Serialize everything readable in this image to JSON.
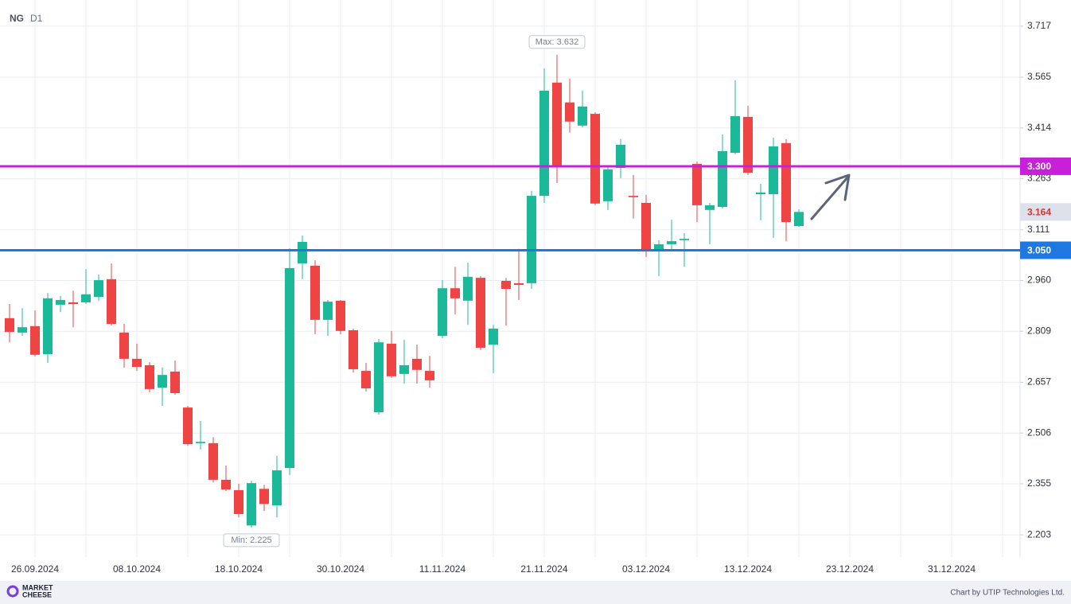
{
  "chart_data": {
    "type": "candlestick",
    "symbol": "NG",
    "timeframe": "D1",
    "categories": [
      null,
      null,
      "26.09.2024",
      null,
      null,
      null,
      null,
      null,
      null,
      null,
      "08.10.2024",
      null,
      null,
      null,
      null,
      null,
      null,
      null,
      "18.10.2024",
      null,
      null,
      null,
      null,
      null,
      null,
      null,
      "30.10.2024",
      null,
      null,
      null,
      null,
      null,
      null,
      null,
      "11.11.2024",
      null,
      null,
      null,
      null,
      null,
      null,
      null,
      "21.11.2024",
      null,
      null,
      null,
      null,
      null,
      null,
      null,
      "03.12.2024",
      null,
      null,
      null,
      null,
      null,
      null,
      null,
      "13.12.2024",
      null,
      null,
      null,
      null,
      null,
      null,
      null,
      "23.12.2024",
      null,
      null,
      null,
      null,
      null,
      null,
      null,
      "31.12.2024",
      null,
      null,
      null,
      null,
      null
    ],
    "open": [
      2.848,
      2.805,
      2.824,
      2.741,
      2.888,
      2.895,
      2.895,
      2.911,
      2.964,
      2.805,
      2.727,
      2.708,
      2.641,
      2.689,
      2.582,
      2.476,
      2.476,
      2.367,
      2.336,
      2.231,
      2.34,
      2.291,
      2.402,
      3.011,
      3.004,
      2.843,
      2.9,
      2.812,
      2.691,
      2.568,
      2.772,
      2.682,
      2.727,
      2.691,
      2.795,
      2.937,
      2.9,
      2.968,
      2.769,
      2.959,
      2.952,
      2.952,
      3.212,
      3.549,
      3.49,
      3.421,
      3.456,
      3.196,
      3.295,
      3.212,
      3.191,
      3.049,
      3.068,
      3.08,
      3.307,
      3.17,
      3.179,
      3.34,
      3.447,
      3.217,
      3.217,
      3.369,
      3.122,
      null,
      null,
      null,
      null,
      null,
      null,
      null,
      null,
      null,
      null,
      null,
      null,
      null,
      null,
      null,
      null,
      null
    ],
    "high": [
      2.89,
      2.878,
      2.871,
      2.923,
      2.914,
      2.93,
      2.994,
      2.978,
      3.011,
      2.831,
      2.772,
      2.717,
      2.701,
      2.722,
      2.587,
      2.542,
      2.494,
      2.409,
      2.355,
      2.364,
      2.352,
      2.438,
      3.056,
      3.094,
      3.02,
      2.902,
      2.902,
      2.817,
      2.715,
      2.786,
      2.81,
      2.784,
      2.769,
      2.736,
      2.961,
      3.001,
      3.013,
      2.973,
      2.828,
      2.968,
      3.054,
      3.227,
      3.591,
      3.632,
      3.561,
      3.525,
      3.461,
      3.302,
      3.381,
      3.274,
      3.215,
      3.08,
      3.141,
      3.101,
      3.314,
      3.191,
      3.395,
      3.556,
      3.48,
      3.248,
      3.385,
      3.381,
      3.172,
      null,
      null,
      null,
      null,
      null,
      null,
      null,
      null,
      null,
      null,
      null,
      null,
      null,
      null,
      null,
      null,
      null
    ],
    "low": [
      2.776,
      2.795,
      2.734,
      2.715,
      2.866,
      2.821,
      2.89,
      2.9,
      2.826,
      2.701,
      2.691,
      2.627,
      2.587,
      2.62,
      2.468,
      2.457,
      2.359,
      2.333,
      2.255,
      2.225,
      2.274,
      2.255,
      2.381,
      2.964,
      2.8,
      2.795,
      2.8,
      2.686,
      2.63,
      2.561,
      2.67,
      2.653,
      2.653,
      2.641,
      2.788,
      2.859,
      2.828,
      2.753,
      2.684,
      2.826,
      2.902,
      2.935,
      3.191,
      3.25,
      3.4,
      3.416,
      3.184,
      3.17,
      3.265,
      3.144,
      3.03,
      2.973,
      3.047,
      3.001,
      3.134,
      3.068,
      3.174,
      3.336,
      3.274,
      3.139,
      3.087,
      3.077,
      3.12,
      null,
      null,
      null,
      null,
      null,
      null,
      null,
      null,
      null,
      null,
      null,
      null,
      null,
      null,
      null,
      null,
      null
    ],
    "close": [
      2.807,
      2.821,
      2.739,
      2.907,
      2.902,
      2.89,
      2.919,
      2.961,
      2.831,
      2.727,
      2.703,
      2.637,
      2.679,
      2.625,
      2.473,
      2.48,
      2.367,
      2.338,
      2.265,
      2.357,
      2.295,
      2.395,
      2.997,
      3.075,
      2.843,
      2.897,
      2.81,
      2.696,
      2.639,
      2.776,
      2.675,
      2.708,
      2.694,
      2.663,
      2.937,
      2.907,
      2.971,
      2.76,
      2.817,
      2.935,
      2.947,
      3.212,
      3.525,
      3.302,
      3.433,
      3.478,
      3.189,
      3.291,
      3.364,
      3.208,
      3.049,
      3.068,
      3.077,
      3.084,
      3.184,
      3.184,
      3.345,
      3.449,
      3.281,
      3.222,
      3.359,
      3.134,
      3.164,
      null,
      null,
      null,
      null,
      null,
      null,
      null,
      null,
      null,
      null,
      null,
      null,
      null,
      null,
      null,
      null,
      null
    ],
    "up_color": "#1bb899",
    "down_color": "#ef4444",
    "ylim": [
      2.137,
      3.783
    ],
    "yticks": [
      3.717,
      3.565,
      3.414,
      3.263,
      3.111,
      {
        "value": 2.96,
        "label": "2.960"
      },
      2.809,
      2.657,
      2.506,
      2.355,
      2.203
    ],
    "grid": true,
    "levels": [
      {
        "value": 3.3,
        "label": "3.300",
        "color": "#c81fd8"
      },
      {
        "value": 3.05,
        "label": "3.050",
        "color": "#1f78e0"
      }
    ],
    "last_price": {
      "value": 3.164,
      "label": "3.164"
    },
    "annotations": [
      {
        "text": "Max: 3.632",
        "value": 3.632,
        "kind": "max"
      },
      {
        "text": "Min: 2.225",
        "value": 2.225,
        "kind": "min"
      }
    ]
  },
  "footer": {
    "logo": [
      "MARKET",
      "CHEESE"
    ],
    "credit": "Chart by UTIP Technologies Ltd."
  }
}
